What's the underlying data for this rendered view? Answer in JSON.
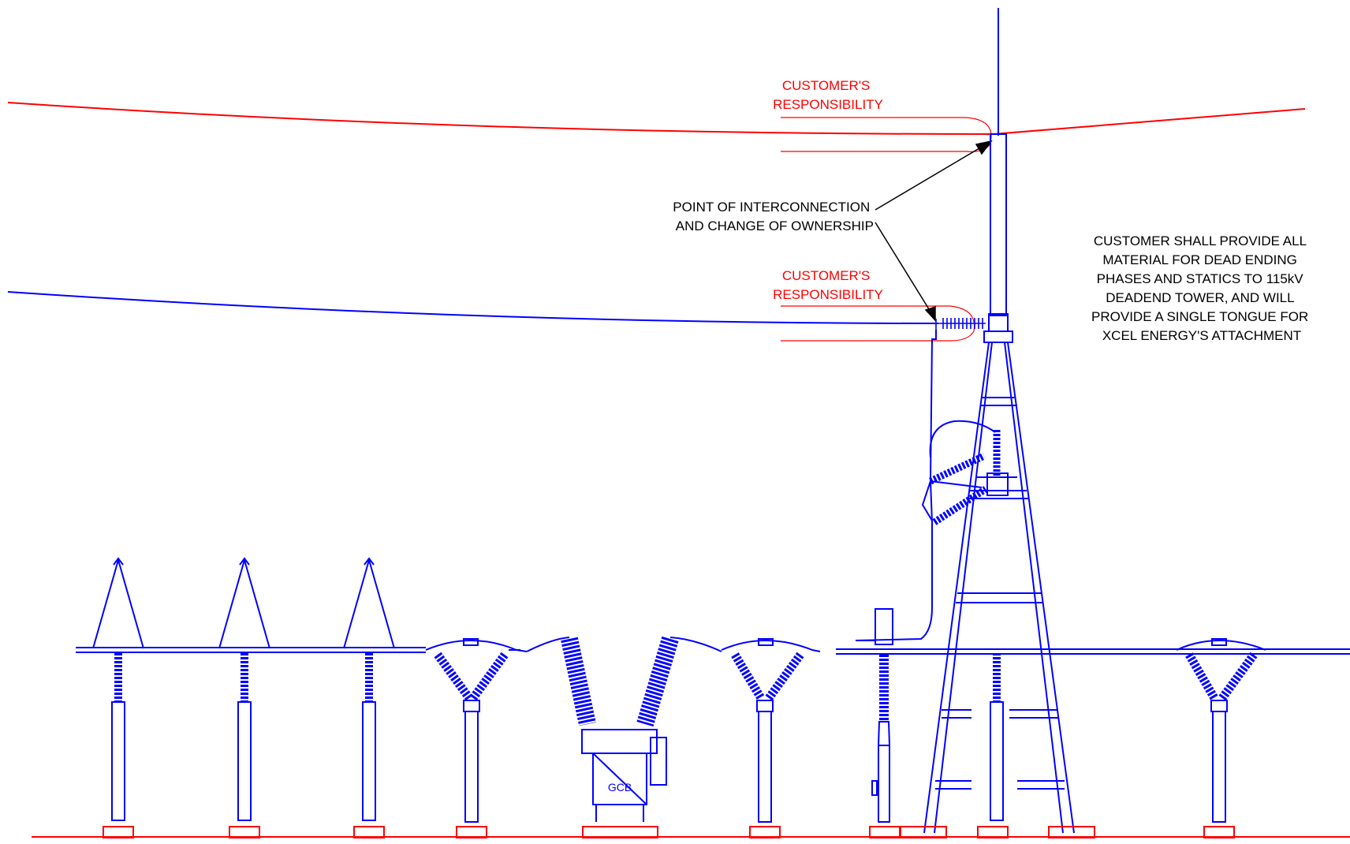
{
  "labels": {
    "customer_resp_top": [
      "CUSTOMER'S",
      "RESPONSIBILITY"
    ],
    "customer_resp_mid": [
      "CUSTOMER'S",
      "RESPONSIBILITY"
    ],
    "poi": [
      "POINT OF INTERCONNECTION",
      "AND CHANGE OF OWNERSHIP"
    ],
    "note": [
      "CUSTOMER SHALL PROVIDE ALL",
      "MATERIAL FOR DEAD ENDING",
      "PHASES AND STATICS TO 115kV",
      "DEADEND TOWER, AND WILL",
      "PROVIDE A SINGLE TONGUE FOR",
      "XCEL ENERGY'S ATTACHMENT"
    ],
    "gcb": "GCB"
  },
  "colors": {
    "equipment": "#0000ff",
    "customer": "#ff0000",
    "annotation": "#000000"
  }
}
